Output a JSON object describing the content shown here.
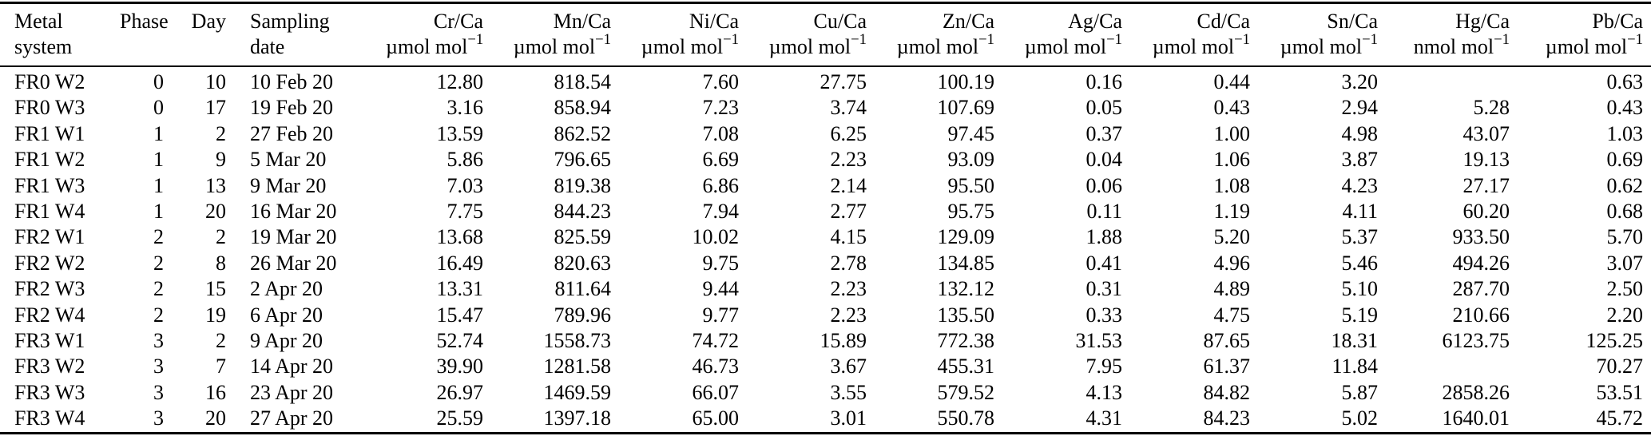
{
  "colors": {
    "background": "#ffffff",
    "text": "#000000",
    "rule": "#000000"
  },
  "table": {
    "columns": [
      {
        "id": "metal-system",
        "label": "Metal",
        "label2": "system"
      },
      {
        "id": "phase",
        "label": "Phase"
      },
      {
        "id": "day",
        "label": "Day"
      },
      {
        "id": "sampling-date",
        "label": "Sampling",
        "label2": "date"
      },
      {
        "id": "cr-ca",
        "label": "Cr/Ca",
        "unit": "µmol mol",
        "exp": "−1"
      },
      {
        "id": "mn-ca",
        "label": "Mn/Ca",
        "unit": "µmol mol",
        "exp": "−1"
      },
      {
        "id": "ni-ca",
        "label": "Ni/Ca",
        "unit": "µmol mol",
        "exp": "−1"
      },
      {
        "id": "cu-ca",
        "label": "Cu/Ca",
        "unit": "µmol mol",
        "exp": "−1"
      },
      {
        "id": "zn-ca",
        "label": "Zn/Ca",
        "unit": "µmol mol",
        "exp": "−1"
      },
      {
        "id": "ag-ca",
        "label": "Ag/Ca",
        "unit": "µmol mol",
        "exp": "−1"
      },
      {
        "id": "cd-ca",
        "label": "Cd/Ca",
        "unit": "µmol mol",
        "exp": "−1"
      },
      {
        "id": "sn-ca",
        "label": "Sn/Ca",
        "unit": "µmol mol",
        "exp": "−1"
      },
      {
        "id": "hg-ca",
        "label": "Hg/Ca",
        "unit": "nmol mol",
        "exp": "−1"
      },
      {
        "id": "pb-ca",
        "label": "Pb/Ca",
        "unit": "µmol mol",
        "exp": "−1"
      }
    ],
    "rows": [
      [
        "FR0 W2",
        "0",
        "10",
        "10 Feb 20",
        "12.80",
        "818.54",
        "7.60",
        "27.75",
        "100.19",
        "0.16",
        "0.44",
        "3.20",
        "",
        "0.63"
      ],
      [
        "FR0 W3",
        "0",
        "17",
        "19 Feb 20",
        "3.16",
        "858.94",
        "7.23",
        "3.74",
        "107.69",
        "0.05",
        "0.43",
        "2.94",
        "5.28",
        "0.43"
      ],
      [
        "FR1 W1",
        "1",
        "2",
        "27 Feb 20",
        "13.59",
        "862.52",
        "7.08",
        "6.25",
        "97.45",
        "0.37",
        "1.00",
        "4.98",
        "43.07",
        "1.03"
      ],
      [
        "FR1 W2",
        "1",
        "9",
        "5 Mar 20",
        "5.86",
        "796.65",
        "6.69",
        "2.23",
        "93.09",
        "0.04",
        "1.06",
        "3.87",
        "19.13",
        "0.69"
      ],
      [
        "FR1 W3",
        "1",
        "13",
        "9 Mar 20",
        "7.03",
        "819.38",
        "6.86",
        "2.14",
        "95.50",
        "0.06",
        "1.08",
        "4.23",
        "27.17",
        "0.62"
      ],
      [
        "FR1 W4",
        "1",
        "20",
        "16 Mar 20",
        "7.75",
        "844.23",
        "7.94",
        "2.77",
        "95.75",
        "0.11",
        "1.19",
        "4.11",
        "60.20",
        "0.68"
      ],
      [
        "FR2 W1",
        "2",
        "2",
        "19 Mar 20",
        "13.68",
        "825.59",
        "10.02",
        "4.15",
        "129.09",
        "1.88",
        "5.20",
        "5.37",
        "933.50",
        "5.70"
      ],
      [
        "FR2 W2",
        "2",
        "8",
        "26 Mar 20",
        "16.49",
        "820.63",
        "9.75",
        "2.78",
        "134.85",
        "0.41",
        "4.96",
        "5.46",
        "494.26",
        "3.07"
      ],
      [
        "FR2 W3",
        "2",
        "15",
        "2 Apr 20",
        "13.31",
        "811.64",
        "9.44",
        "2.23",
        "132.12",
        "0.31",
        "4.89",
        "5.10",
        "287.70",
        "2.50"
      ],
      [
        "FR2 W4",
        "2",
        "19",
        "6 Apr 20",
        "15.47",
        "789.96",
        "9.77",
        "2.23",
        "135.50",
        "0.33",
        "4.75",
        "5.19",
        "210.66",
        "2.20"
      ],
      [
        "FR3 W1",
        "3",
        "2",
        "9 Apr 20",
        "52.74",
        "1558.73",
        "74.72",
        "15.89",
        "772.38",
        "31.53",
        "87.65",
        "18.31",
        "6123.75",
        "125.25"
      ],
      [
        "FR3 W2",
        "3",
        "7",
        "14 Apr 20",
        "39.90",
        "1281.58",
        "46.73",
        "3.67",
        "455.31",
        "7.95",
        "61.37",
        "11.84",
        "",
        "70.27"
      ],
      [
        "FR3 W3",
        "3",
        "16",
        "23 Apr 20",
        "26.97",
        "1469.59",
        "66.07",
        "3.55",
        "579.52",
        "4.13",
        "84.82",
        "5.87",
        "2858.26",
        "53.51"
      ],
      [
        "FR3 W4",
        "3",
        "20",
        "27 Apr 20",
        "25.59",
        "1397.18",
        "65.00",
        "3.01",
        "550.78",
        "4.31",
        "84.23",
        "5.02",
        "1640.01",
        "45.72"
      ]
    ]
  }
}
